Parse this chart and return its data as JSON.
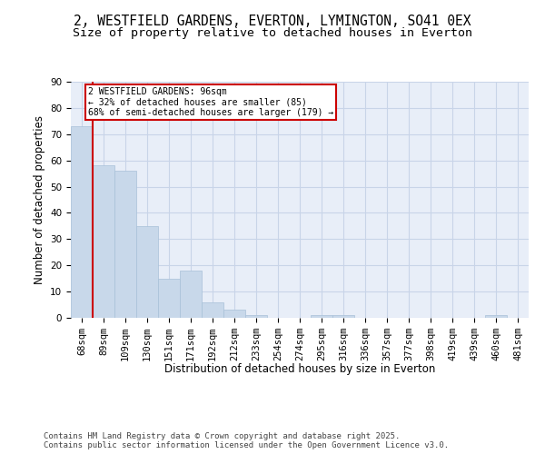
{
  "title1": "2, WESTFIELD GARDENS, EVERTON, LYMINGTON, SO41 0EX",
  "title2": "Size of property relative to detached houses in Everton",
  "xlabel": "Distribution of detached houses by size in Everton",
  "ylabel": "Number of detached properties",
  "categories": [
    "68sqm",
    "89sqm",
    "109sqm",
    "130sqm",
    "151sqm",
    "171sqm",
    "192sqm",
    "212sqm",
    "233sqm",
    "254sqm",
    "274sqm",
    "295sqm",
    "316sqm",
    "336sqm",
    "357sqm",
    "377sqm",
    "398sqm",
    "419sqm",
    "439sqm",
    "460sqm",
    "481sqm"
  ],
  "values": [
    73,
    58,
    56,
    35,
    15,
    18,
    6,
    3,
    1,
    0,
    0,
    1,
    1,
    0,
    0,
    0,
    0,
    0,
    0,
    1,
    0
  ],
  "bar_color": "#c8d8ea",
  "bar_edge_color": "#a8c0d8",
  "vline_x": 1,
  "vline_color": "#cc0000",
  "annotation_text": "2 WESTFIELD GARDENS: 96sqm\n← 32% of detached houses are smaller (85)\n68% of semi-detached houses are larger (179) →",
  "annotation_box_color": "#ffffff",
  "annotation_box_edge_color": "#cc0000",
  "ylim": [
    0,
    90
  ],
  "yticks": [
    0,
    10,
    20,
    30,
    40,
    50,
    60,
    70,
    80,
    90
  ],
  "grid_color": "#c8d4e8",
  "background_color": "#e8eef8",
  "footer_text": "Contains HM Land Registry data © Crown copyright and database right 2025.\nContains public sector information licensed under the Open Government Licence v3.0.",
  "title_fontsize": 10.5,
  "subtitle_fontsize": 9.5,
  "axis_label_fontsize": 8.5,
  "tick_fontsize": 7.5,
  "footer_fontsize": 6.5
}
